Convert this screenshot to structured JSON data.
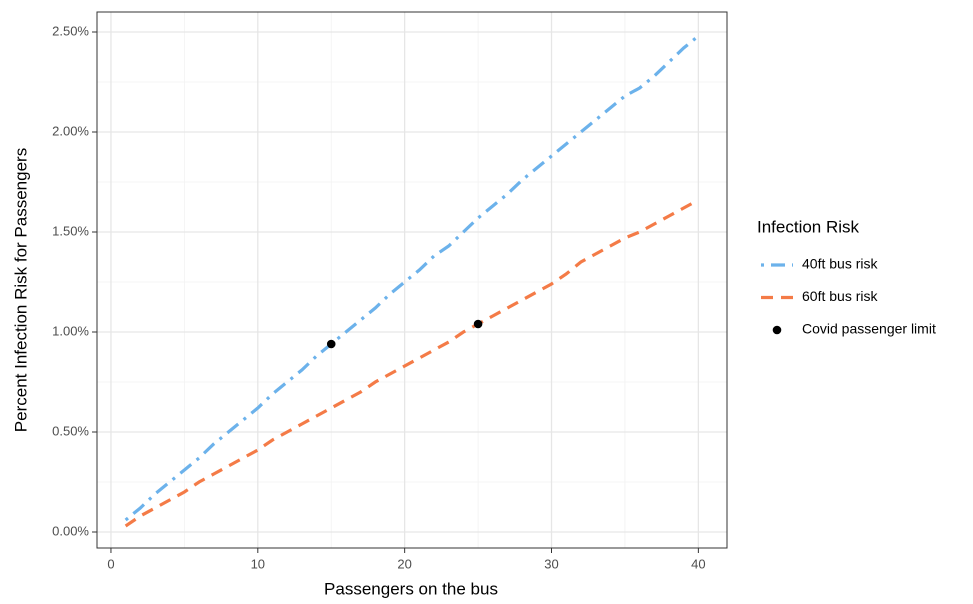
{
  "chart_data": {
    "type": "line",
    "xlabel": "Passengers on the bus",
    "ylabel": "Percent Infection Risk for Passengers",
    "legend_title": "Infection Risk",
    "legend_position": "right",
    "grid": true,
    "xlim": [
      -0.95,
      41.95
    ],
    "ylim": [
      -0.08,
      2.6
    ],
    "xticks": [
      0,
      10,
      20,
      30,
      40
    ],
    "x_minor_ticks": [
      5,
      15,
      25,
      35
    ],
    "yticks": [
      {
        "value": 0,
        "label": "0.00%"
      },
      {
        "value": 0.5,
        "label": "0.50%"
      },
      {
        "value": 1,
        "label": "1.00%"
      },
      {
        "value": 1.5,
        "label": "1.50%"
      },
      {
        "value": 2,
        "label": "2.00%"
      },
      {
        "value": 2.5,
        "label": "2.50%"
      }
    ],
    "y_minor_ticks": [
      0.25,
      0.75,
      1.25,
      1.75,
      2.25
    ],
    "series": [
      {
        "name": "40ft bus risk",
        "type": "line",
        "color": "#6cb2eb",
        "dash": "dotdash",
        "x": [
          1,
          2,
          3,
          4,
          5,
          6,
          7,
          8,
          9,
          10,
          11,
          12,
          13,
          14,
          15,
          16,
          17,
          18,
          19,
          20,
          21,
          22,
          23,
          24,
          25,
          26,
          27,
          28,
          29,
          30,
          31,
          32,
          33,
          34,
          35,
          36,
          37,
          38,
          39,
          40
        ],
        "values": [
          0.06,
          0.12,
          0.19,
          0.25,
          0.31,
          0.37,
          0.44,
          0.5,
          0.56,
          0.62,
          0.69,
          0.75,
          0.81,
          0.88,
          0.94,
          1.0,
          1.06,
          1.12,
          1.19,
          1.25,
          1.31,
          1.38,
          1.43,
          1.5,
          1.57,
          1.63,
          1.69,
          1.76,
          1.82,
          1.88,
          1.94,
          2.0,
          2.06,
          2.12,
          2.18,
          2.22,
          2.28,
          2.35,
          2.42,
          2.48
        ]
      },
      {
        "name": "60ft bus risk",
        "type": "line",
        "color": "#f47b47",
        "dash": "dashed",
        "x": [
          1,
          2,
          3,
          4,
          5,
          6,
          7,
          8,
          9,
          10,
          11,
          12,
          13,
          14,
          15,
          16,
          17,
          18,
          19,
          20,
          21,
          22,
          23,
          24,
          25,
          26,
          27,
          28,
          29,
          30,
          31,
          32,
          33,
          34,
          35,
          36,
          37,
          38,
          39,
          40
        ],
        "values": [
          0.03,
          0.08,
          0.12,
          0.16,
          0.2,
          0.25,
          0.29,
          0.33,
          0.37,
          0.41,
          0.46,
          0.5,
          0.54,
          0.58,
          0.62,
          0.66,
          0.7,
          0.75,
          0.79,
          0.83,
          0.87,
          0.91,
          0.95,
          1.0,
          1.04,
          1.08,
          1.12,
          1.16,
          1.2,
          1.24,
          1.29,
          1.35,
          1.39,
          1.43,
          1.47,
          1.5,
          1.54,
          1.58,
          1.62,
          1.66
        ]
      },
      {
        "name": "Covid passenger limit",
        "type": "scatter",
        "color": "#000000",
        "x": [
          15,
          25
        ],
        "values": [
          0.94,
          1.04
        ]
      }
    ]
  }
}
